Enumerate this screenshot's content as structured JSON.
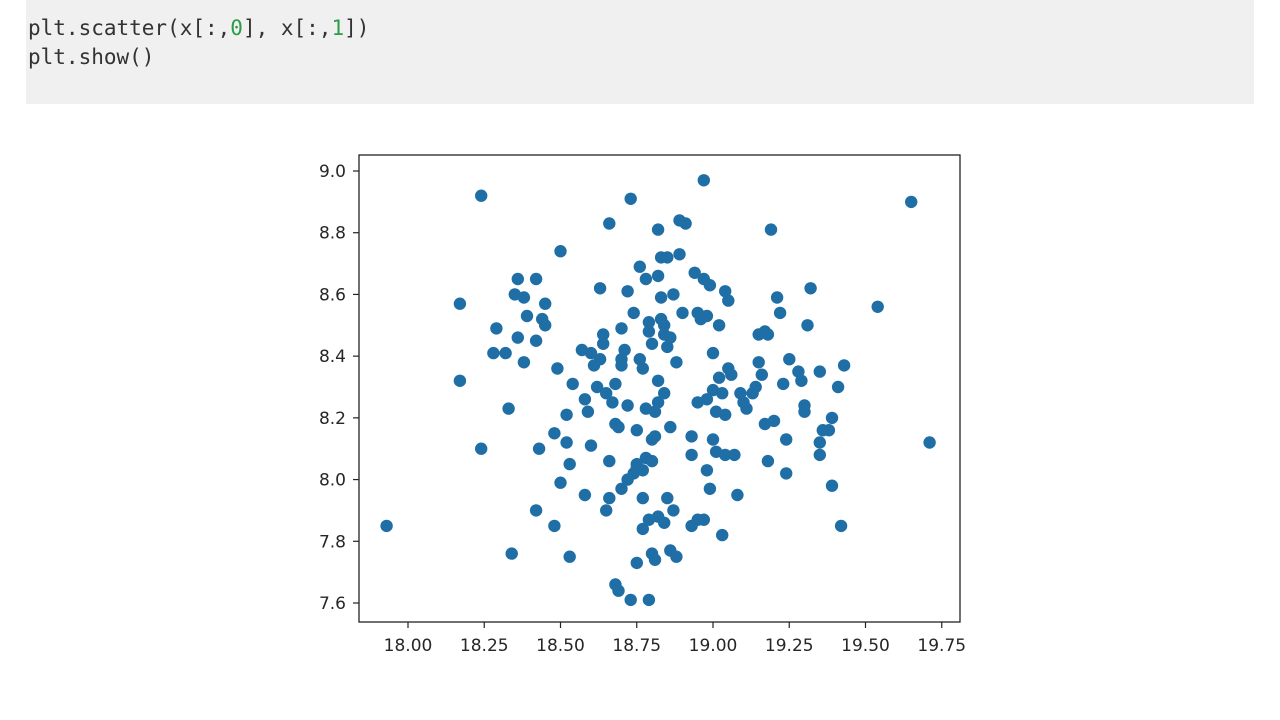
{
  "code": {
    "line1": {
      "before_first_index": "plt.scatter(x[:,",
      "first_index": "0",
      "between_indices": "], x[:,",
      "second_index": "1",
      "after_second_index": "])"
    },
    "line2": "plt.show()"
  },
  "colors": {
    "code_background": "#f0f0f0",
    "code_number": "#2e9b48",
    "code_text": "#333333",
    "marker": "#1f6fa6",
    "axes": "#222222"
  },
  "chart_data": {
    "type": "scatter",
    "title": "",
    "xlabel": "",
    "ylabel": "",
    "xlim": [
      17.9,
      19.75
    ],
    "ylim": [
      7.56,
      9.05
    ],
    "xticks": [
      18.0,
      18.25,
      18.5,
      18.75,
      19.0,
      19.25,
      19.5,
      19.75
    ],
    "xtick_labels": [
      "18.00",
      "18.25",
      "18.50",
      "18.75",
      "19.00",
      "19.25",
      "19.50",
      "19.75"
    ],
    "yticks": [
      7.6,
      7.8,
      8.0,
      8.2,
      8.4,
      8.6,
      8.8,
      9.0
    ],
    "ytick_labels": [
      "7.6",
      "7.8",
      "8.0",
      "8.2",
      "8.4",
      "8.6",
      "8.8",
      "9.0"
    ],
    "grid": false,
    "legend": "none",
    "series": [
      {
        "points": [
          [
            17.93,
            7.85
          ],
          [
            18.17,
            8.57
          ],
          [
            18.17,
            8.32
          ],
          [
            18.24,
            8.92
          ],
          [
            18.24,
            8.1
          ],
          [
            18.28,
            8.41
          ],
          [
            18.29,
            8.49
          ],
          [
            18.32,
            8.41
          ],
          [
            18.33,
            8.23
          ],
          [
            18.34,
            7.76
          ],
          [
            18.35,
            8.6
          ],
          [
            18.36,
            8.65
          ],
          [
            18.36,
            8.46
          ],
          [
            18.38,
            8.59
          ],
          [
            18.38,
            8.38
          ],
          [
            18.39,
            8.53
          ],
          [
            18.42,
            8.65
          ],
          [
            18.42,
            8.45
          ],
          [
            18.42,
            7.9
          ],
          [
            18.43,
            8.1
          ],
          [
            18.44,
            8.52
          ],
          [
            18.45,
            8.57
          ],
          [
            18.45,
            8.5
          ],
          [
            18.48,
            8.15
          ],
          [
            18.48,
            7.85
          ],
          [
            18.49,
            8.36
          ],
          [
            18.5,
            8.74
          ],
          [
            18.5,
            7.99
          ],
          [
            18.52,
            8.21
          ],
          [
            18.52,
            8.12
          ],
          [
            18.53,
            8.05
          ],
          [
            18.53,
            7.75
          ],
          [
            18.54,
            8.31
          ],
          [
            18.57,
            8.42
          ],
          [
            18.58,
            8.26
          ],
          [
            18.58,
            7.95
          ],
          [
            18.59,
            8.22
          ],
          [
            18.6,
            8.11
          ],
          [
            18.6,
            8.41
          ],
          [
            18.61,
            8.37
          ],
          [
            18.62,
            8.3
          ],
          [
            18.63,
            8.39
          ],
          [
            18.63,
            8.62
          ],
          [
            18.64,
            8.47
          ],
          [
            18.64,
            8.44
          ],
          [
            18.65,
            7.9
          ],
          [
            18.65,
            8.28
          ],
          [
            18.66,
            8.06
          ],
          [
            18.66,
            7.94
          ],
          [
            18.66,
            8.83
          ],
          [
            18.67,
            8.25
          ],
          [
            18.68,
            8.18
          ],
          [
            18.68,
            8.31
          ],
          [
            18.68,
            7.66
          ],
          [
            18.69,
            7.64
          ],
          [
            18.69,
            8.17
          ],
          [
            18.7,
            8.49
          ],
          [
            18.7,
            8.37
          ],
          [
            18.7,
            8.39
          ],
          [
            18.7,
            7.97
          ],
          [
            18.71,
            8.42
          ],
          [
            18.72,
            8.0
          ],
          [
            18.72,
            8.24
          ],
          [
            18.72,
            8.61
          ],
          [
            18.73,
            7.61
          ],
          [
            18.73,
            8.91
          ],
          [
            18.74,
            8.02
          ],
          [
            18.74,
            8.54
          ],
          [
            18.75,
            7.73
          ],
          [
            18.75,
            8.16
          ],
          [
            18.75,
            8.05
          ],
          [
            18.75,
            8.04
          ],
          [
            18.76,
            8.39
          ],
          [
            18.76,
            8.69
          ],
          [
            18.77,
            8.36
          ],
          [
            18.77,
            8.03
          ],
          [
            18.77,
            7.94
          ],
          [
            18.77,
            7.84
          ],
          [
            18.78,
            8.65
          ],
          [
            18.78,
            8.07
          ],
          [
            18.78,
            8.23
          ],
          [
            18.79,
            7.61
          ],
          [
            18.79,
            7.87
          ],
          [
            18.79,
            8.48
          ],
          [
            18.79,
            8.51
          ],
          [
            18.8,
            8.13
          ],
          [
            18.8,
            7.76
          ],
          [
            18.8,
            8.44
          ],
          [
            18.8,
            8.06
          ],
          [
            18.81,
            8.22
          ],
          [
            18.81,
            8.14
          ],
          [
            18.81,
            7.74
          ],
          [
            18.82,
            8.66
          ],
          [
            18.82,
            8.81
          ],
          [
            18.82,
            8.32
          ],
          [
            18.82,
            7.88
          ],
          [
            18.82,
            8.25
          ],
          [
            18.83,
            8.59
          ],
          [
            18.83,
            8.52
          ],
          [
            18.83,
            8.72
          ],
          [
            18.84,
            8.5
          ],
          [
            18.84,
            7.86
          ],
          [
            18.84,
            8.28
          ],
          [
            18.84,
            8.47
          ],
          [
            18.85,
            7.94
          ],
          [
            18.85,
            8.72
          ],
          [
            18.85,
            8.43
          ],
          [
            18.86,
            8.17
          ],
          [
            18.86,
            7.77
          ],
          [
            18.86,
            8.46
          ],
          [
            18.87,
            8.6
          ],
          [
            18.87,
            7.9
          ],
          [
            18.88,
            8.38
          ],
          [
            18.88,
            7.75
          ],
          [
            18.89,
            8.73
          ],
          [
            18.89,
            8.84
          ],
          [
            18.9,
            8.54
          ],
          [
            18.91,
            8.83
          ],
          [
            18.93,
            8.08
          ],
          [
            18.93,
            8.14
          ],
          [
            18.93,
            7.85
          ],
          [
            18.94,
            8.67
          ],
          [
            18.95,
            7.87
          ],
          [
            18.95,
            8.54
          ],
          [
            18.95,
            8.25
          ],
          [
            18.96,
            8.52
          ],
          [
            18.97,
            8.97
          ],
          [
            18.97,
            8.65
          ],
          [
            18.97,
            7.87
          ],
          [
            18.98,
            8.03
          ],
          [
            18.98,
            8.53
          ],
          [
            18.98,
            8.26
          ],
          [
            18.99,
            7.97
          ],
          [
            18.99,
            8.63
          ],
          [
            19.0,
            8.13
          ],
          [
            19.0,
            8.29
          ],
          [
            19.0,
            8.41
          ],
          [
            19.01,
            8.09
          ],
          [
            19.01,
            8.22
          ],
          [
            19.02,
            8.33
          ],
          [
            19.02,
            8.5
          ],
          [
            19.03,
            7.82
          ],
          [
            19.03,
            8.28
          ],
          [
            19.04,
            8.08
          ],
          [
            19.04,
            8.61
          ],
          [
            19.04,
            8.21
          ],
          [
            19.05,
            8.58
          ],
          [
            19.05,
            8.36
          ],
          [
            19.06,
            8.34
          ],
          [
            19.07,
            8.08
          ],
          [
            19.08,
            7.95
          ],
          [
            19.09,
            8.28
          ],
          [
            19.1,
            8.25
          ],
          [
            19.11,
            8.23
          ],
          [
            19.13,
            8.28
          ],
          [
            19.14,
            8.3
          ],
          [
            19.15,
            8.47
          ],
          [
            19.15,
            8.38
          ],
          [
            19.16,
            8.34
          ],
          [
            19.17,
            8.18
          ],
          [
            19.17,
            8.48
          ],
          [
            19.18,
            8.06
          ],
          [
            19.18,
            8.47
          ],
          [
            19.19,
            8.81
          ],
          [
            19.2,
            8.19
          ],
          [
            19.21,
            8.59
          ],
          [
            19.22,
            8.54
          ],
          [
            19.23,
            8.31
          ],
          [
            19.24,
            8.02
          ],
          [
            19.24,
            8.13
          ],
          [
            19.25,
            8.39
          ],
          [
            19.28,
            8.35
          ],
          [
            19.29,
            8.32
          ],
          [
            19.3,
            8.22
          ],
          [
            19.3,
            8.24
          ],
          [
            19.31,
            8.5
          ],
          [
            19.32,
            8.62
          ],
          [
            19.35,
            8.08
          ],
          [
            19.35,
            8.12
          ],
          [
            19.35,
            8.35
          ],
          [
            19.36,
            8.16
          ],
          [
            19.38,
            8.16
          ],
          [
            19.39,
            8.2
          ],
          [
            19.39,
            7.98
          ],
          [
            19.41,
            8.3
          ],
          [
            19.42,
            7.85
          ],
          [
            19.43,
            8.37
          ],
          [
            19.54,
            8.56
          ],
          [
            19.65,
            8.9
          ],
          [
            19.71,
            8.12
          ]
        ]
      }
    ]
  }
}
